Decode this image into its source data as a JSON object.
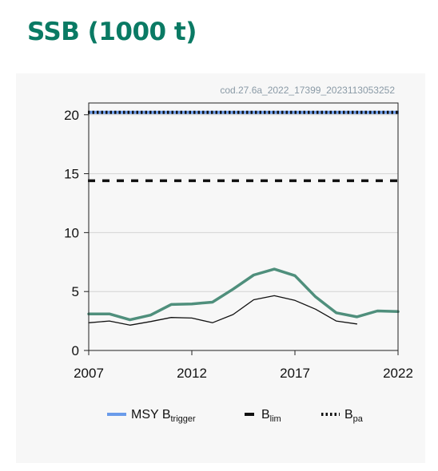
{
  "title": "SSB (1000 t)",
  "colors": {
    "title": "#0a7a64",
    "ssb": "#4f8f7c",
    "secondary": "#111111",
    "msy": "#6a9bea",
    "ref": "#111111",
    "grid": "#d3d3d3"
  },
  "chart_data": {
    "type": "line",
    "stock_id": "cod.27.6a_2022_17399_2023113053252",
    "xlim": [
      2007,
      2022
    ],
    "ylim": [
      0,
      21
    ],
    "x_ticks": [
      2007,
      2012,
      2017,
      2022
    ],
    "y_ticks": [
      0,
      5,
      10,
      15,
      20
    ],
    "grid": "horizontal",
    "legend_placement": "bottom",
    "series": [
      {
        "key": "ssb",
        "x": [
          2007,
          2008,
          2009,
          2010,
          2011,
          2012,
          2013,
          2014,
          2015,
          2016,
          2017,
          2018,
          2019,
          2020,
          2021,
          2022
        ],
        "values": [
          3.1,
          3.1,
          2.6,
          3.0,
          3.9,
          3.95,
          4.1,
          5.2,
          6.4,
          6.9,
          6.35,
          4.55,
          3.2,
          2.85,
          3.35,
          3.3
        ]
      },
      {
        "key": "secondary",
        "x": [
          2007,
          2008,
          2009,
          2010,
          2011,
          2012,
          2013,
          2014,
          2015,
          2016,
          2017,
          2018,
          2019,
          2020
        ],
        "values": [
          2.35,
          2.5,
          2.15,
          2.45,
          2.8,
          2.75,
          2.35,
          3.05,
          4.3,
          4.65,
          4.25,
          3.5,
          2.5,
          2.25
        ]
      }
    ],
    "reference_lines": [
      {
        "key": "msy",
        "value": 20.2,
        "style": "solid"
      },
      {
        "key": "bpa",
        "value": 20.2,
        "style": "dotted"
      },
      {
        "key": "blim",
        "value": 14.4,
        "style": "dashed"
      }
    ],
    "legend": [
      {
        "key": "msy",
        "label": "MSY B",
        "sub": "trigger"
      },
      {
        "key": "blim",
        "label": "B",
        "sub": "lim"
      },
      {
        "key": "bpa",
        "label": "B",
        "sub": "pa"
      }
    ]
  }
}
